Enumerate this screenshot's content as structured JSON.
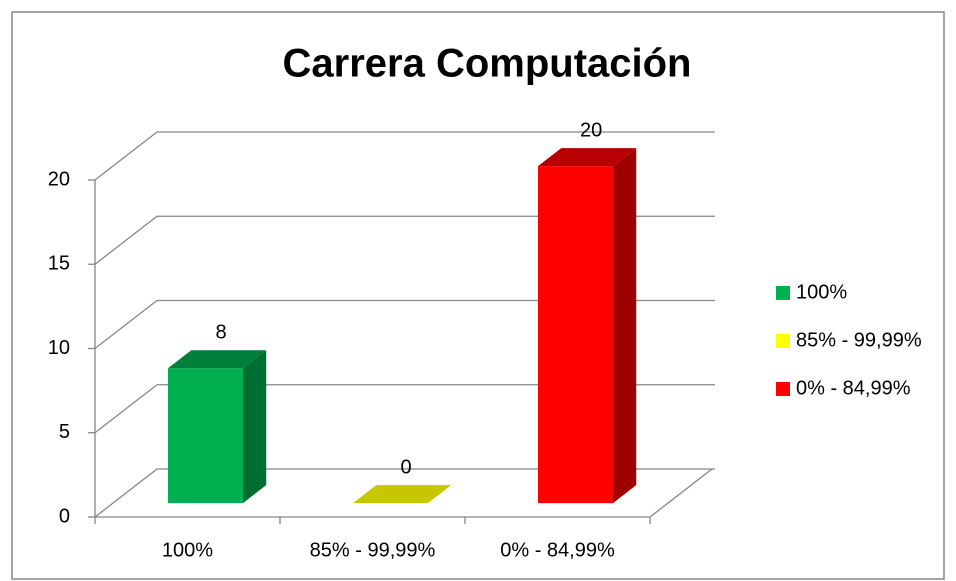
{
  "chart_data": {
    "type": "bar3d",
    "title": "Carrera Computación",
    "categories": [
      "100%",
      "85% - 99,99%",
      "0% - 84,99%"
    ],
    "values": [
      8,
      0,
      20
    ],
    "colors": [
      "#00b050",
      "#ffff00",
      "#ff0000"
    ],
    "ylim": [
      0,
      20
    ],
    "yticks": [
      0,
      5,
      10,
      15,
      20
    ],
    "grid": true,
    "legend": "right"
  }
}
